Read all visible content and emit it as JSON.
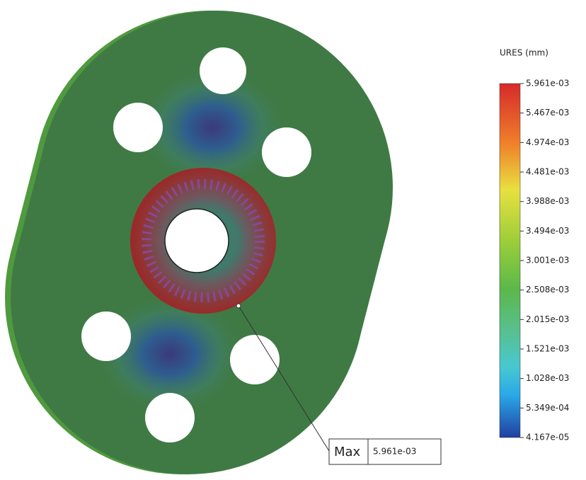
{
  "legend": {
    "title": "URES (mm)",
    "labels": [
      "5.961e-03",
      "5.467e-03",
      "4.974e-03",
      "4.481e-03",
      "3.988e-03",
      "3.494e-03",
      "3.001e-03",
      "2.508e-03",
      "2.015e-03",
      "1.521e-03",
      "1.028e-03",
      "5.349e-04",
      "4.167e-05"
    ]
  },
  "callout": {
    "label": "Max",
    "value": "5.961e-03"
  }
}
